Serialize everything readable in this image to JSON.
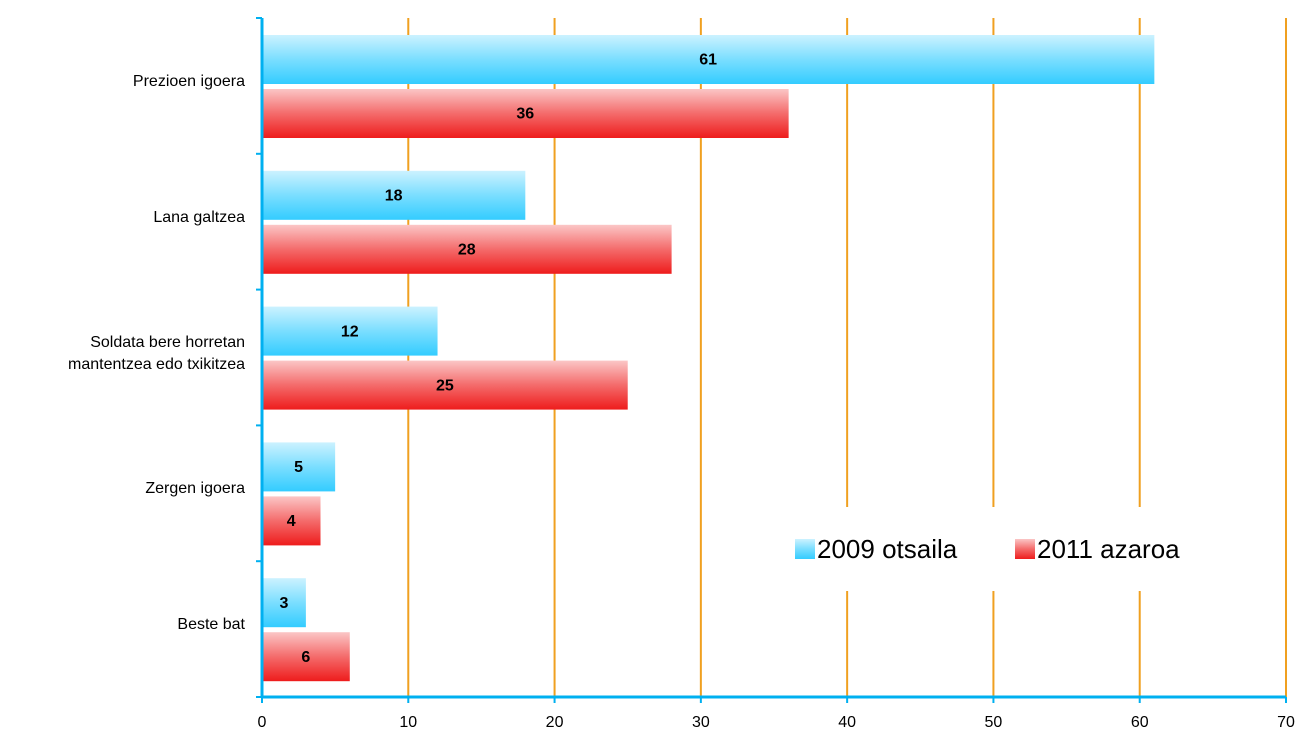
{
  "chart_data": {
    "type": "bar",
    "orientation": "horizontal",
    "categories": [
      "Prezioen igoera",
      "Lana galtzea",
      "Soldata bere horretan mantentzea edo txikitzea",
      "Zergen igoera",
      "Beste bat"
    ],
    "series": [
      {
        "name": "2009 otsaila",
        "color": "#33ccff",
        "values": [
          61,
          18,
          12,
          5,
          3
        ]
      },
      {
        "name": "2011 azaroa",
        "color": "#ee1c1c",
        "values": [
          36,
          28,
          25,
          4,
          6
        ]
      }
    ],
    "xlim": [
      0,
      70
    ],
    "xticks": [
      0,
      10,
      20,
      30,
      40,
      50,
      60,
      70
    ],
    "grid": true,
    "legend": "lower right"
  }
}
